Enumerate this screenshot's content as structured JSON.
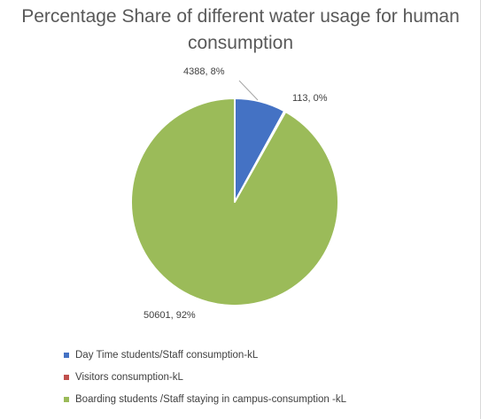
{
  "chart_data": {
    "type": "pie",
    "title": "Percentage Share of different water usage for human consumption",
    "legend_position": "bottom",
    "categories": [
      "Day Time students/Staff consumption-kL",
      "Visitors consumption-kL",
      "Boarding students /Staff staying in campus-consumption -kL"
    ],
    "values": [
      4388,
      113,
      50601
    ],
    "percent_labels": [
      "8%",
      "0%",
      "92%"
    ],
    "data_labels": [
      "4388, 8%",
      "113, 0%",
      "50601, 92%"
    ],
    "colors": [
      "#4472c4",
      "#c0504d",
      "#9bbb59"
    ],
    "slice_border_color": "#ffffff"
  }
}
